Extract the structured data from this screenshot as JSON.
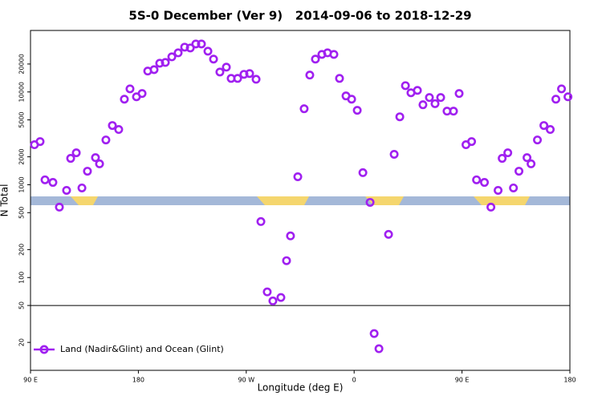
{
  "chart_data": {
    "type": "scatter",
    "title": "5S-0 December (Ver 9)   2014-09-06 to 2018-12-29",
    "xlabel": "Longitude (deg E)",
    "ylabel": "N Total",
    "log_y": true,
    "legend": "bottom-left",
    "hline": 50,
    "xlim": [
      90,
      540
    ],
    "ylim": [
      10,
      46000
    ],
    "xticks": [
      {
        "value": 90,
        "label": "90 E"
      },
      180,
      {
        "value": 270,
        "label": "90 W"
      },
      {
        "value": 360,
        "label": "0"
      },
      {
        "value": 450,
        "label": "90 E"
      },
      {
        "value": 540,
        "label": "180"
      }
    ],
    "yticks": [
      20,
      50,
      100,
      200,
      500,
      1000,
      2000,
      5000,
      10000,
      20000
    ],
    "x": [
      93.3,
      98.0,
      102.1,
      108.7,
      114.1,
      120.1,
      123.5,
      128.2,
      132.9,
      137.5,
      144.2,
      147.6,
      152.9,
      158.3,
      163.6,
      168.3,
      173.0,
      178.4,
      183.1,
      187.8,
      193.1,
      197.8,
      202.5,
      207.9,
      213.2,
      218.6,
      223.3,
      227.9,
      232.6,
      238.0,
      242.7,
      248.0,
      253.4,
      257.4,
      262.8,
      268.1,
      272.8,
      278.2,
      282.2,
      287.5,
      292.2,
      298.9,
      303.6,
      306.9,
      313.0,
      318.3,
      323.0,
      327.7,
      333.1,
      337.8,
      343.1,
      347.8,
      353.2,
      357.9,
      362.6,
      367.3,
      373.3,
      376.7,
      380.7,
      388.7,
      393.4,
      398.1,
      402.8,
      407.4,
      412.8,
      417.4,
      422.8,
      427.5,
      432.2,
      437.5,
      442.9,
      447.6,
      453.3,
      458.0,
      462.1,
      468.7,
      474.1,
      480.1,
      483.5,
      488.2,
      492.9,
      497.5,
      504.2,
      507.6,
      512.9,
      518.3,
      523.6,
      528.3,
      533.0,
      538.4
    ],
    "series": [
      {
        "name": "Land (Nadir&Glint) and Ocean (Glint)",
        "color": "#a020f0",
        "values": [
          2700,
          2920,
          1130,
          1060,
          574,
          870,
          1925,
          2210,
          924,
          1400,
          1960,
          1680,
          3040,
          4350,
          3940,
          8360,
          10800,
          8870,
          9620,
          16800,
          17400,
          20400,
          20800,
          23900,
          26400,
          30400,
          29800,
          32900,
          32900,
          27500,
          22600,
          16400,
          18500,
          14000,
          14000,
          15500,
          15800,
          13700,
          401,
          70,
          56,
          61,
          152,
          281,
          1220,
          6590,
          15200,
          22600,
          25400,
          26400,
          25400,
          14000,
          9060,
          8360,
          6340,
          1350,
          646,
          24.9,
          17.1,
          292,
          2130,
          5400,
          11700,
          9800,
          10400,
          7280,
          8710,
          7480,
          8710,
          6210,
          6210,
          9620,
          2700,
          2920,
          1130,
          1060,
          574,
          870,
          1925,
          2210,
          924,
          1400,
          1960,
          1680,
          3040,
          4350,
          3940,
          8360,
          10800,
          8870
        ]
      }
    ]
  }
}
